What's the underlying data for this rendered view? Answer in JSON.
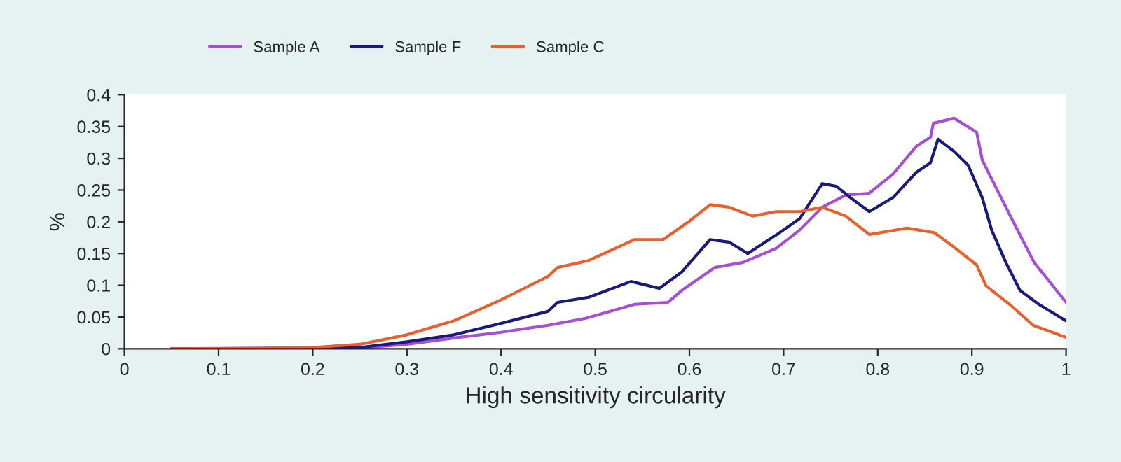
{
  "chart_data": {
    "type": "line",
    "xlabel": "High sensitivity circularity",
    "ylabel": "%",
    "xlim": [
      0,
      1
    ],
    "xticks": [
      0,
      0.1,
      0.2,
      0.3,
      0.4,
      0.5,
      0.6,
      0.7,
      0.8,
      0.9,
      1
    ],
    "ylim": [
      0,
      0.4
    ],
    "yticks": [
      0,
      0.05,
      0.1,
      0.15,
      0.2,
      0.25,
      0.3,
      0.35,
      0.4
    ],
    "grid": false,
    "legend": "top",
    "line_style": "solid",
    "series": [
      {
        "name": "Sample A",
        "color": "#a64fd6",
        "x": [
          0.05,
          0.2,
          0.25,
          0.3,
          0.35,
          0.4,
          0.45,
          0.49,
          0.542,
          0.577,
          0.592,
          0.627,
          0.657,
          0.692,
          0.717,
          0.741,
          0.766,
          0.791,
          0.816,
          0.841,
          0.856,
          0.859,
          0.881,
          0.905,
          0.911,
          0.931,
          0.946,
          0.966,
          1.0
        ],
        "values": [
          0,
          0,
          0.001,
          0.007,
          0.017,
          0.026,
          0.037,
          0.048,
          0.07,
          0.073,
          0.092,
          0.128,
          0.136,
          0.158,
          0.187,
          0.223,
          0.242,
          0.245,
          0.275,
          0.319,
          0.333,
          0.355,
          0.363,
          0.341,
          0.297,
          0.238,
          0.194,
          0.136,
          0.073
        ]
      },
      {
        "name": "Sample F",
        "color": "#1a1a7a",
        "x": [
          0.05,
          0.2,
          0.25,
          0.3,
          0.35,
          0.4,
          0.45,
          0.46,
          0.493,
          0.538,
          0.568,
          0.592,
          0.622,
          0.642,
          0.662,
          0.692,
          0.717,
          0.741,
          0.756,
          0.771,
          0.791,
          0.816,
          0.841,
          0.856,
          0.864,
          0.881,
          0.896,
          0.911,
          0.921,
          0.936,
          0.951,
          0.971,
          1.0
        ],
        "values": [
          0,
          0,
          0.002,
          0.011,
          0.022,
          0.04,
          0.059,
          0.073,
          0.081,
          0.106,
          0.095,
          0.121,
          0.172,
          0.168,
          0.15,
          0.179,
          0.205,
          0.26,
          0.256,
          0.238,
          0.216,
          0.238,
          0.278,
          0.293,
          0.33,
          0.311,
          0.289,
          0.238,
          0.187,
          0.136,
          0.092,
          0.07,
          0.044
        ]
      },
      {
        "name": "Sample C",
        "color": "#e8602c",
        "x": [
          0.05,
          0.2,
          0.25,
          0.3,
          0.35,
          0.4,
          0.45,
          0.46,
          0.493,
          0.542,
          0.572,
          0.599,
          0.622,
          0.642,
          0.667,
          0.692,
          0.717,
          0.741,
          0.766,
          0.791,
          0.831,
          0.86,
          0.88,
          0.905,
          0.915,
          0.94,
          0.965,
          1.0
        ],
        "values": [
          0,
          0.002,
          0.007,
          0.022,
          0.044,
          0.077,
          0.114,
          0.128,
          0.139,
          0.172,
          0.172,
          0.2,
          0.227,
          0.223,
          0.209,
          0.216,
          0.216,
          0.223,
          0.209,
          0.18,
          0.19,
          0.183,
          0.161,
          0.132,
          0.099,
          0.07,
          0.037,
          0.018
        ]
      }
    ]
  }
}
